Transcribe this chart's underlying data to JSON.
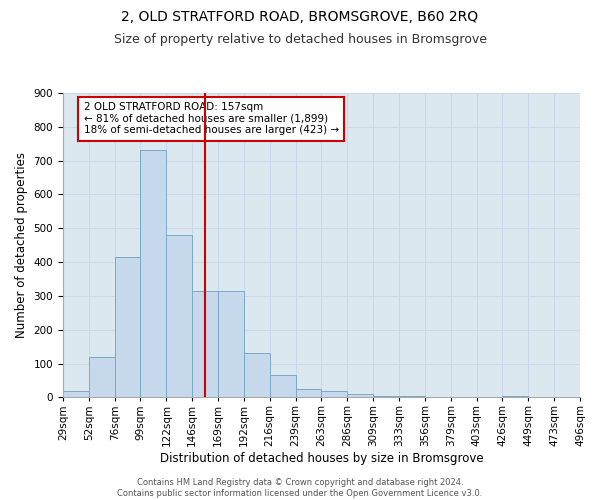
{
  "title": "2, OLD STRATFORD ROAD, BROMSGROVE, B60 2RQ",
  "subtitle": "Size of property relative to detached houses in Bromsgrove",
  "xlabel": "Distribution of detached houses by size in Bromsgrove",
  "ylabel": "Number of detached properties",
  "bar_values": [
    18,
    120,
    415,
    730,
    480,
    315,
    315,
    130,
    65,
    25,
    20,
    10,
    5,
    5,
    0,
    0,
    0,
    5,
    0,
    0
  ],
  "categories": [
    "29sqm",
    "52sqm",
    "76sqm",
    "99sqm",
    "122sqm",
    "146sqm",
    "169sqm",
    "192sqm",
    "216sqm",
    "239sqm",
    "263sqm",
    "286sqm",
    "309sqm",
    "333sqm",
    "356sqm",
    "379sqm",
    "403sqm",
    "426sqm",
    "449sqm",
    "473sqm",
    "496sqm"
  ],
  "bar_color": "#c6d9ec",
  "bar_edge_color": "#7aaac8",
  "highlight_line_color": "#cc0000",
  "annotation_text": "2 OLD STRATFORD ROAD: 157sqm\n← 81% of detached houses are smaller (1,899)\n18% of semi-detached houses are larger (423) →",
  "annotation_box_color": "#ffffff",
  "annotation_box_edge": "#cc0000",
  "ylim": [
    0,
    900
  ],
  "yticks": [
    0,
    100,
    200,
    300,
    400,
    500,
    600,
    700,
    800,
    900
  ],
  "grid_color": "#c8d8e8",
  "background_color": "#dce8f0",
  "footer": "Contains HM Land Registry data © Crown copyright and database right 2024.\nContains public sector information licensed under the Open Government Licence v3.0.",
  "title_fontsize": 10,
  "subtitle_fontsize": 9,
  "xlabel_fontsize": 8.5,
  "ylabel_fontsize": 8.5,
  "tick_fontsize": 7.5,
  "annotation_fontsize": 7.5,
  "footer_fontsize": 6
}
